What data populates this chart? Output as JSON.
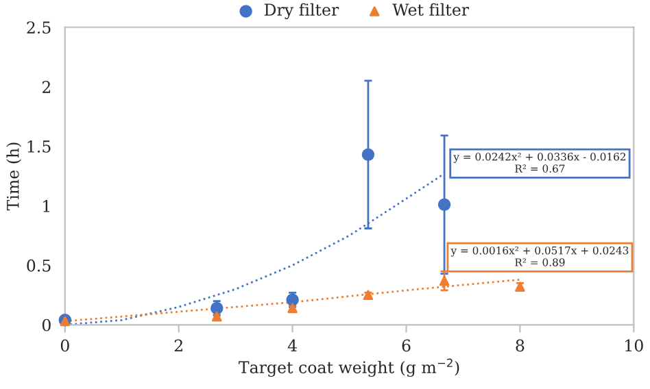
{
  "chart_data": {
    "type": "scatter",
    "xlabel": "Target coat weight (g m$^{−2}$)",
    "ylabel": "Time (h)",
    "xlim": [
      0,
      10
    ],
    "xticks": [
      0,
      2,
      4,
      6,
      8,
      10
    ],
    "ylim": [
      0,
      2.5
    ],
    "yticks": [
      0,
      0.5,
      1,
      1.5,
      2,
      2.5
    ],
    "grid": false,
    "legend": "top",
    "series": [
      {
        "name": "Dry filter",
        "marker": "circle",
        "color": "#4472c4",
        "x": [
          0,
          2.67,
          4,
          5.33,
          6.67
        ],
        "values": [
          0.04,
          0.14,
          0.21,
          1.43,
          1.01
        ],
        "errors": [
          0.01,
          0.06,
          0.06,
          0.62,
          0.58
        ]
      },
      {
        "name": "Wet filter",
        "marker": "triangle",
        "color": "#ed7d31",
        "x": [
          0,
          2.67,
          4,
          5.33,
          6.67,
          8
        ],
        "values": [
          0.03,
          0.07,
          0.14,
          0.25,
          0.37,
          0.32
        ],
        "errors": [
          0.01,
          0.02,
          0.02,
          0.02,
          0.08,
          0.03
        ]
      },
      {
        "type": "line",
        "line_style": "dotted",
        "marker": "none",
        "color": "#4472c4",
        "x": [
          0,
          1,
          2,
          3,
          4,
          5,
          6,
          6.67
        ],
        "values": [
          0,
          0.04,
          0.15,
          0.3,
          0.5,
          0.75,
          1.06,
          1.27
        ]
      },
      {
        "type": "line",
        "line_style": "dotted",
        "marker": "none",
        "color": "#ed7d31",
        "x": [
          0,
          2,
          4,
          6,
          8
        ],
        "values": [
          0.03,
          0.11,
          0.19,
          0.29,
          0.38
        ]
      }
    ],
    "annotations": [
      "y = 0.0242x² + 0.0336x - 0.0162\nR² = 0.67",
      "y = 0.0016x² + 0.0517x + 0.0243\nR² = 0.89"
    ]
  }
}
